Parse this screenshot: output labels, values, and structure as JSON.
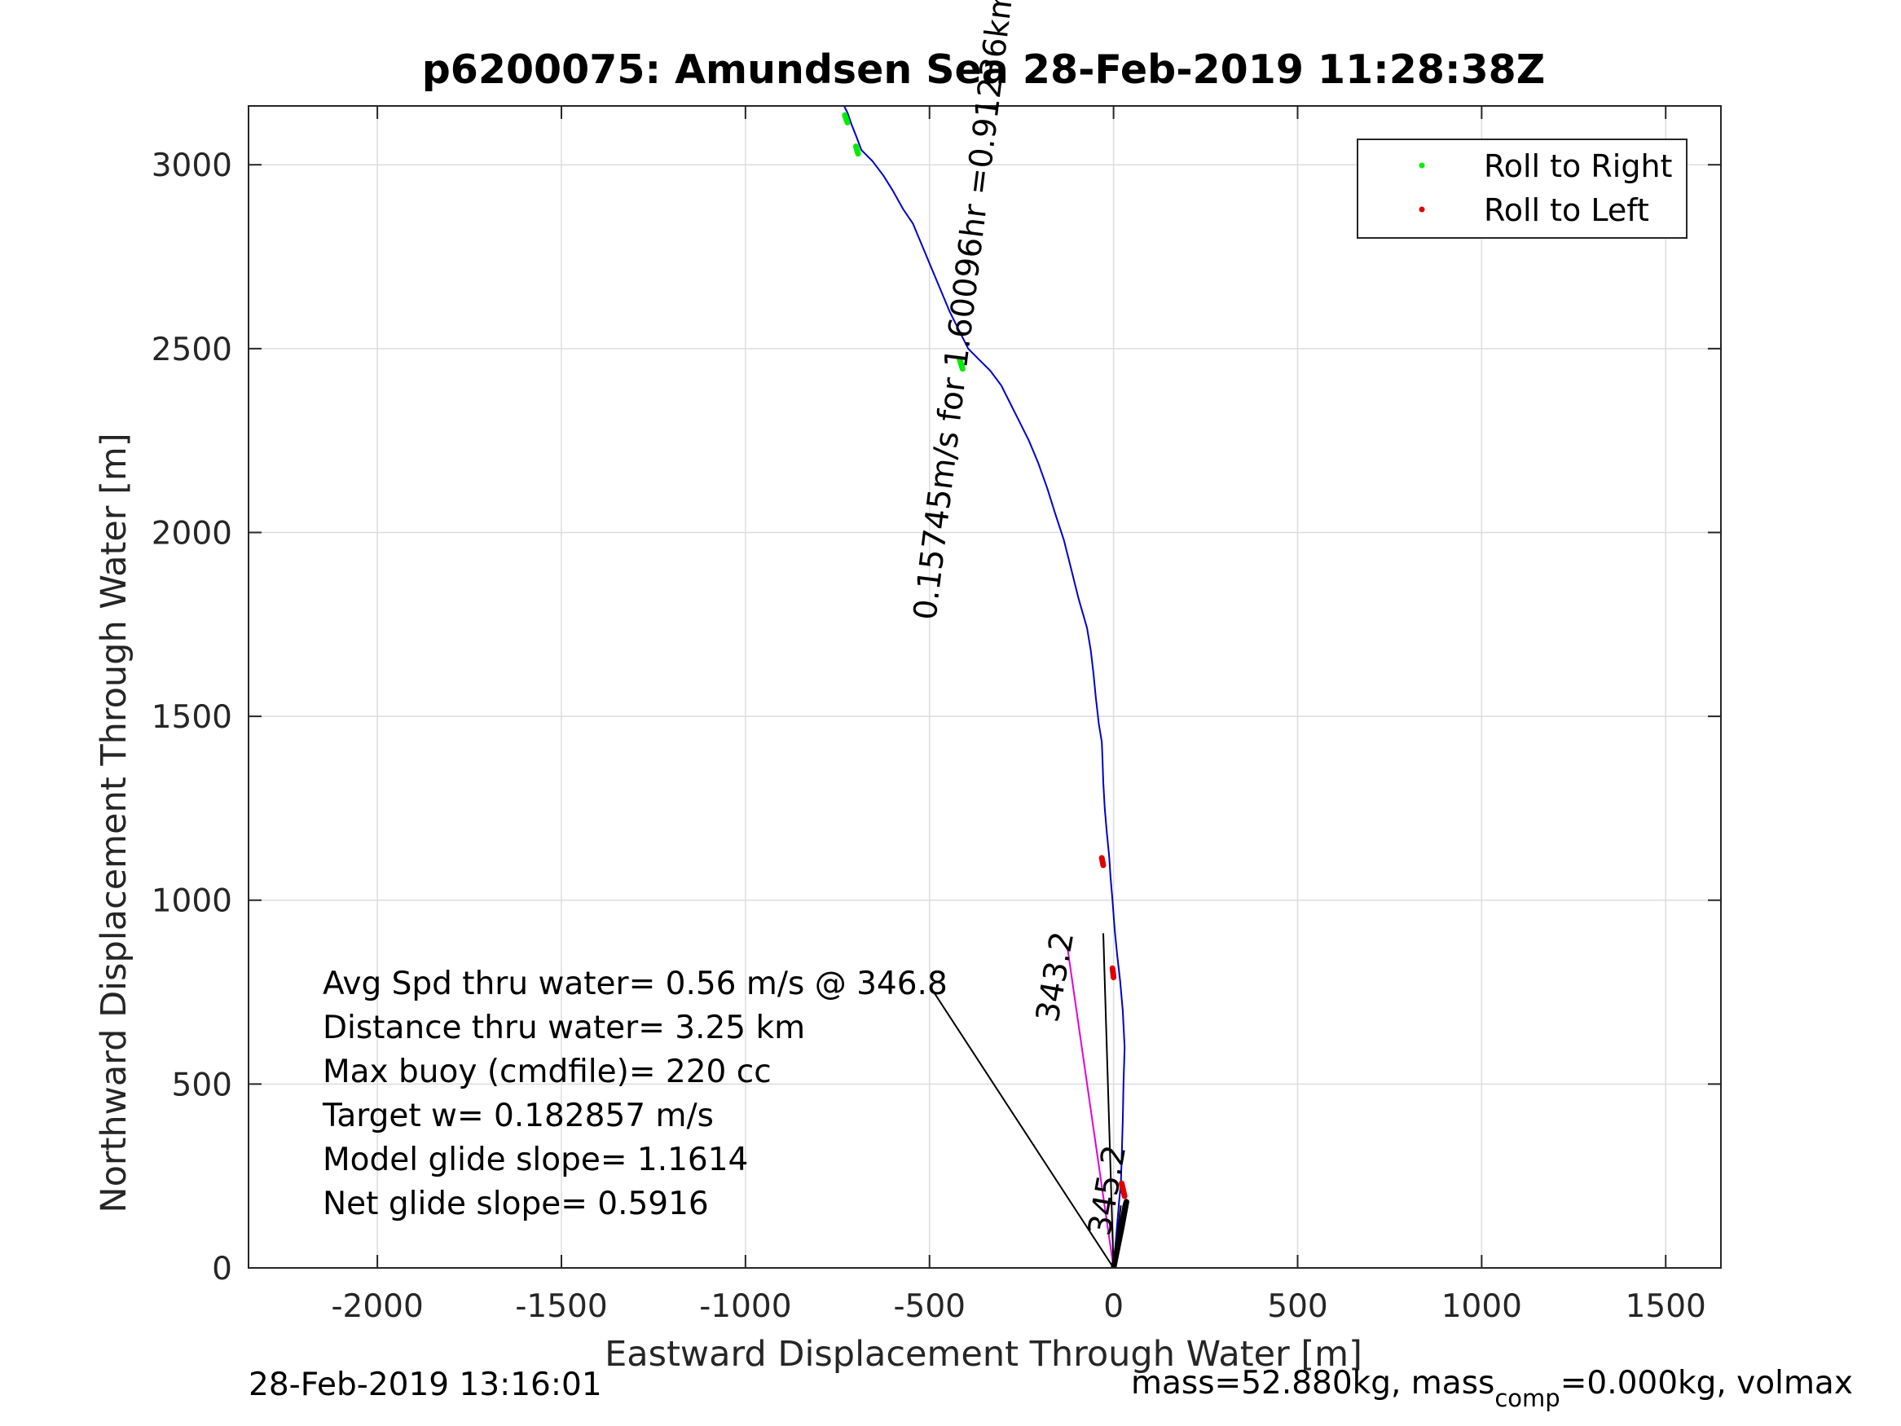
{
  "figure": {
    "footer_left": "28-Feb-2019 13:16:01",
    "footer_right_prefix": "mass=52.880kg, mass",
    "footer_right_sub": "comp",
    "footer_right_suffix": "=0.000kg, volmax"
  },
  "stats": [
    "Avg Spd thru water=  0.56 m/s @ 346.8",
    "Distance thru water=  3.25 km",
    "Max buoy (cmdfile)= 220 cc",
    "Target w= 0.182857 m/s",
    "Model glide slope= 1.1614",
    "Net glide slope= 0.5916"
  ],
  "annotations": {
    "drift_label": "hr =0.91236km",
    "drift_hours": "1.60096",
    "drift_speed": "0.15745m/s for ",
    "heading_a": "345.2",
    "heading_b": "343.2"
  },
  "colors": {
    "track": "#0000cc",
    "roll_right": "#00ee00",
    "roll_left": "#e00000",
    "drift_line": "#e000e0",
    "grid": "#dcdcdc",
    "axis": "#262626"
  },
  "chart_data": {
    "type": "line",
    "title": "p6200075: Amundsen Sea 28-Feb-2019 11:28:38Z",
    "xlabel": "Eastward Displacement Through Water [m]",
    "ylabel": "Northward Displacement Through Water [m]",
    "xlim": [
      -2350,
      1650
    ],
    "ylim": [
      0,
      3160
    ],
    "xticks": [
      -2000,
      -1500,
      -1000,
      -500,
      0,
      500,
      1000,
      1500
    ],
    "yticks": [
      0,
      500,
      1000,
      1500,
      2000,
      2500,
      3000
    ],
    "grid": true,
    "legend_position": "top-right",
    "legend": [
      "Roll to Right",
      "Roll to Left"
    ],
    "series": [
      {
        "name": "",
        "style": "track",
        "x": [
          0,
          5,
          10,
          15,
          20,
          22,
          25,
          27,
          30,
          25,
          18,
          10,
          3,
          -3,
          -8,
          -12,
          -18,
          -24,
          -28,
          -30,
          -32,
          -40,
          -48,
          -55,
          -62,
          -72,
          -95,
          -115,
          -135,
          -158,
          -180,
          -205,
          -230,
          -255,
          -280,
          -305,
          -335,
          -365,
          -395,
          -420,
          -445,
          -470,
          -495,
          -520,
          -545,
          -572,
          -600,
          -625,
          -655,
          -685,
          -700,
          -712,
          -722,
          -732
        ],
        "y": [
          0,
          60,
          120,
          180,
          230,
          300,
          400,
          500,
          600,
          700,
          780,
          850,
          920,
          1000,
          1060,
          1120,
          1180,
          1250,
          1320,
          1380,
          1430,
          1480,
          1550,
          1620,
          1680,
          1740,
          1820,
          1900,
          1980,
          2050,
          2120,
          2190,
          2250,
          2300,
          2350,
          2400,
          2440,
          2470,
          2500,
          2550,
          2600,
          2660,
          2720,
          2780,
          2840,
          2880,
          2930,
          2970,
          3010,
          3040,
          3080,
          3110,
          3140,
          3160
        ]
      },
      {
        "name": "Roll to Right",
        "style": "roll_right",
        "x": [
          -730,
          -723,
          -700,
          -694,
          -418,
          -410
        ],
        "y": [
          3135,
          3115,
          3050,
          3030,
          2470,
          2445
        ]
      },
      {
        "name": "Roll to Left",
        "style": "roll_left",
        "x": [
          -32,
          -28,
          -3,
          0,
          22,
          30
        ],
        "y": [
          1115,
          1095,
          815,
          790,
          230,
          195
        ]
      },
      {
        "name": "",
        "style": "drift_line",
        "x": [
          0,
          -125
        ],
        "y": [
          0,
          870
        ]
      },
      {
        "name": "",
        "style": "thin_black",
        "x": [
          0,
          -495,
          null,
          0,
          -28,
          null,
          0,
          20
        ],
        "y": [
          0,
          760,
          null,
          0,
          910,
          null,
          0,
          170
        ]
      },
      {
        "name": "",
        "style": "thick_black",
        "x": [
          0,
          18,
          32,
          35,
          22,
          8
        ],
        "y": [
          0,
          90,
          170,
          180,
          110,
          40
        ]
      }
    ]
  }
}
